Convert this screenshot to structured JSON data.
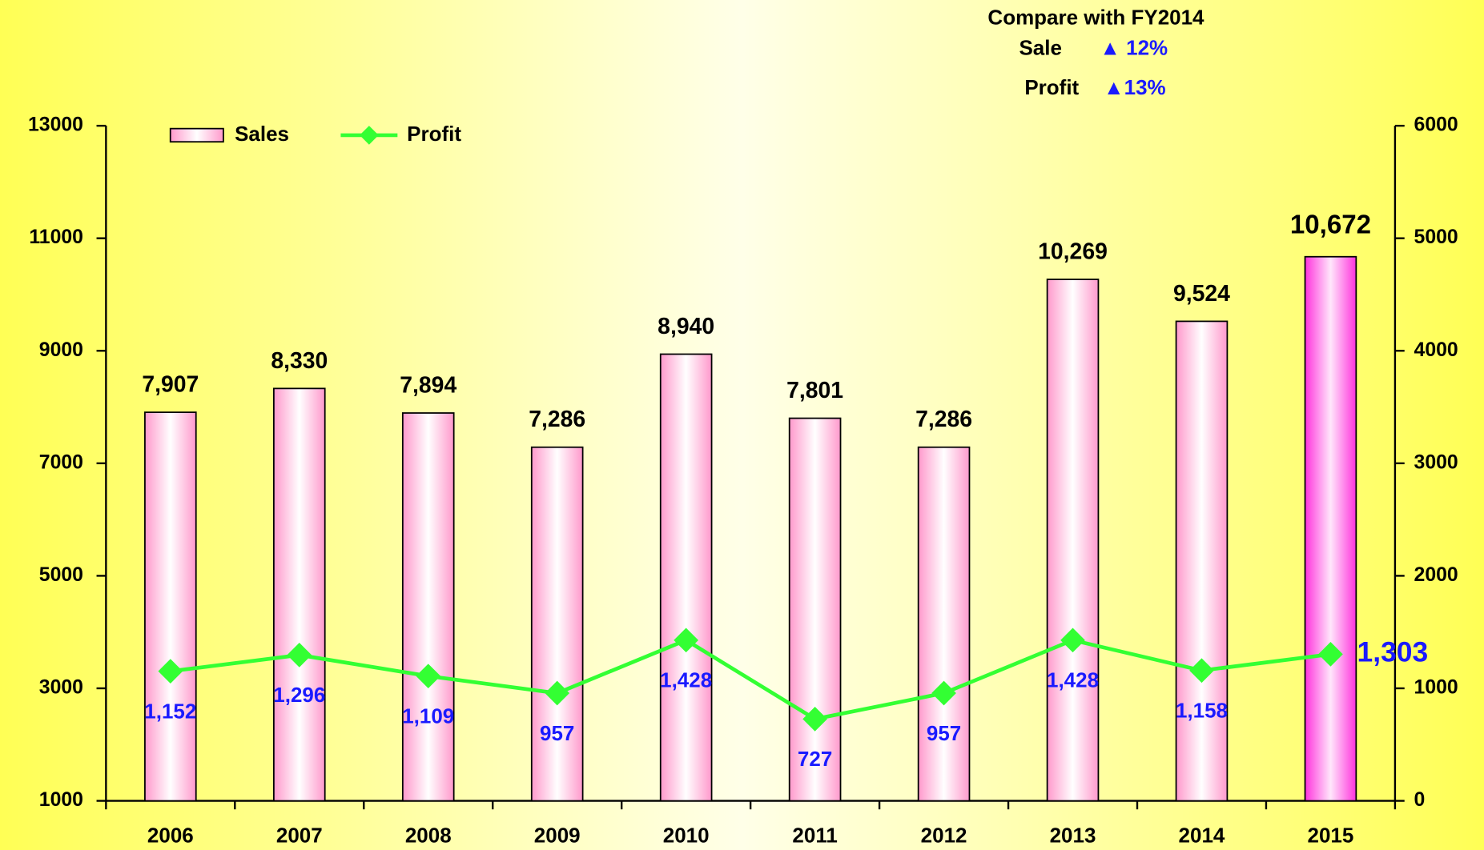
{
  "chart_data": {
    "type": "combo",
    "categories": [
      "2006",
      "2007",
      "2008",
      "2009",
      "2010",
      "2011",
      "2012",
      "2013",
      "2014",
      "2015"
    ],
    "series": [
      {
        "name": "Sales",
        "type": "bar",
        "color": "#ff99cc",
        "highlight_color": "#ff33dd",
        "values": [
          7907,
          8330,
          7894,
          7286,
          8940,
          7801,
          7286,
          10269,
          9524,
          10672
        ],
        "value_labels": [
          "7,907",
          "8,330",
          "7,894",
          "7,286",
          "8,940",
          "7,801",
          "7,286",
          "10,269",
          "9,524",
          "10,672"
        ]
      },
      {
        "name": "Profit",
        "type": "line",
        "axis": "y2",
        "color": "#33ff33",
        "values": [
          1152,
          1296,
          1109,
          957,
          1428,
          727,
          957,
          1428,
          1158,
          1303
        ],
        "value_labels": [
          "1,152",
          "1,296",
          "1,109",
          "957",
          "1,428",
          "727",
          "957",
          "1,428",
          "1,158",
          "1,303"
        ]
      }
    ],
    "ylim": [
      1000,
      13000
    ],
    "yticks": [
      1000,
      3000,
      5000,
      7000,
      9000,
      11000,
      13000
    ],
    "y2lim": [
      0,
      6000
    ],
    "y2ticks": [
      0,
      1000,
      2000,
      3000,
      4000,
      5000,
      6000
    ],
    "annotation": {
      "title": "Compare with FY2014",
      "rows": [
        {
          "label": "Sale",
          "text": "▲ 12%"
        },
        {
          "label": "Profit",
          "text": "▲13%"
        }
      ]
    }
  }
}
